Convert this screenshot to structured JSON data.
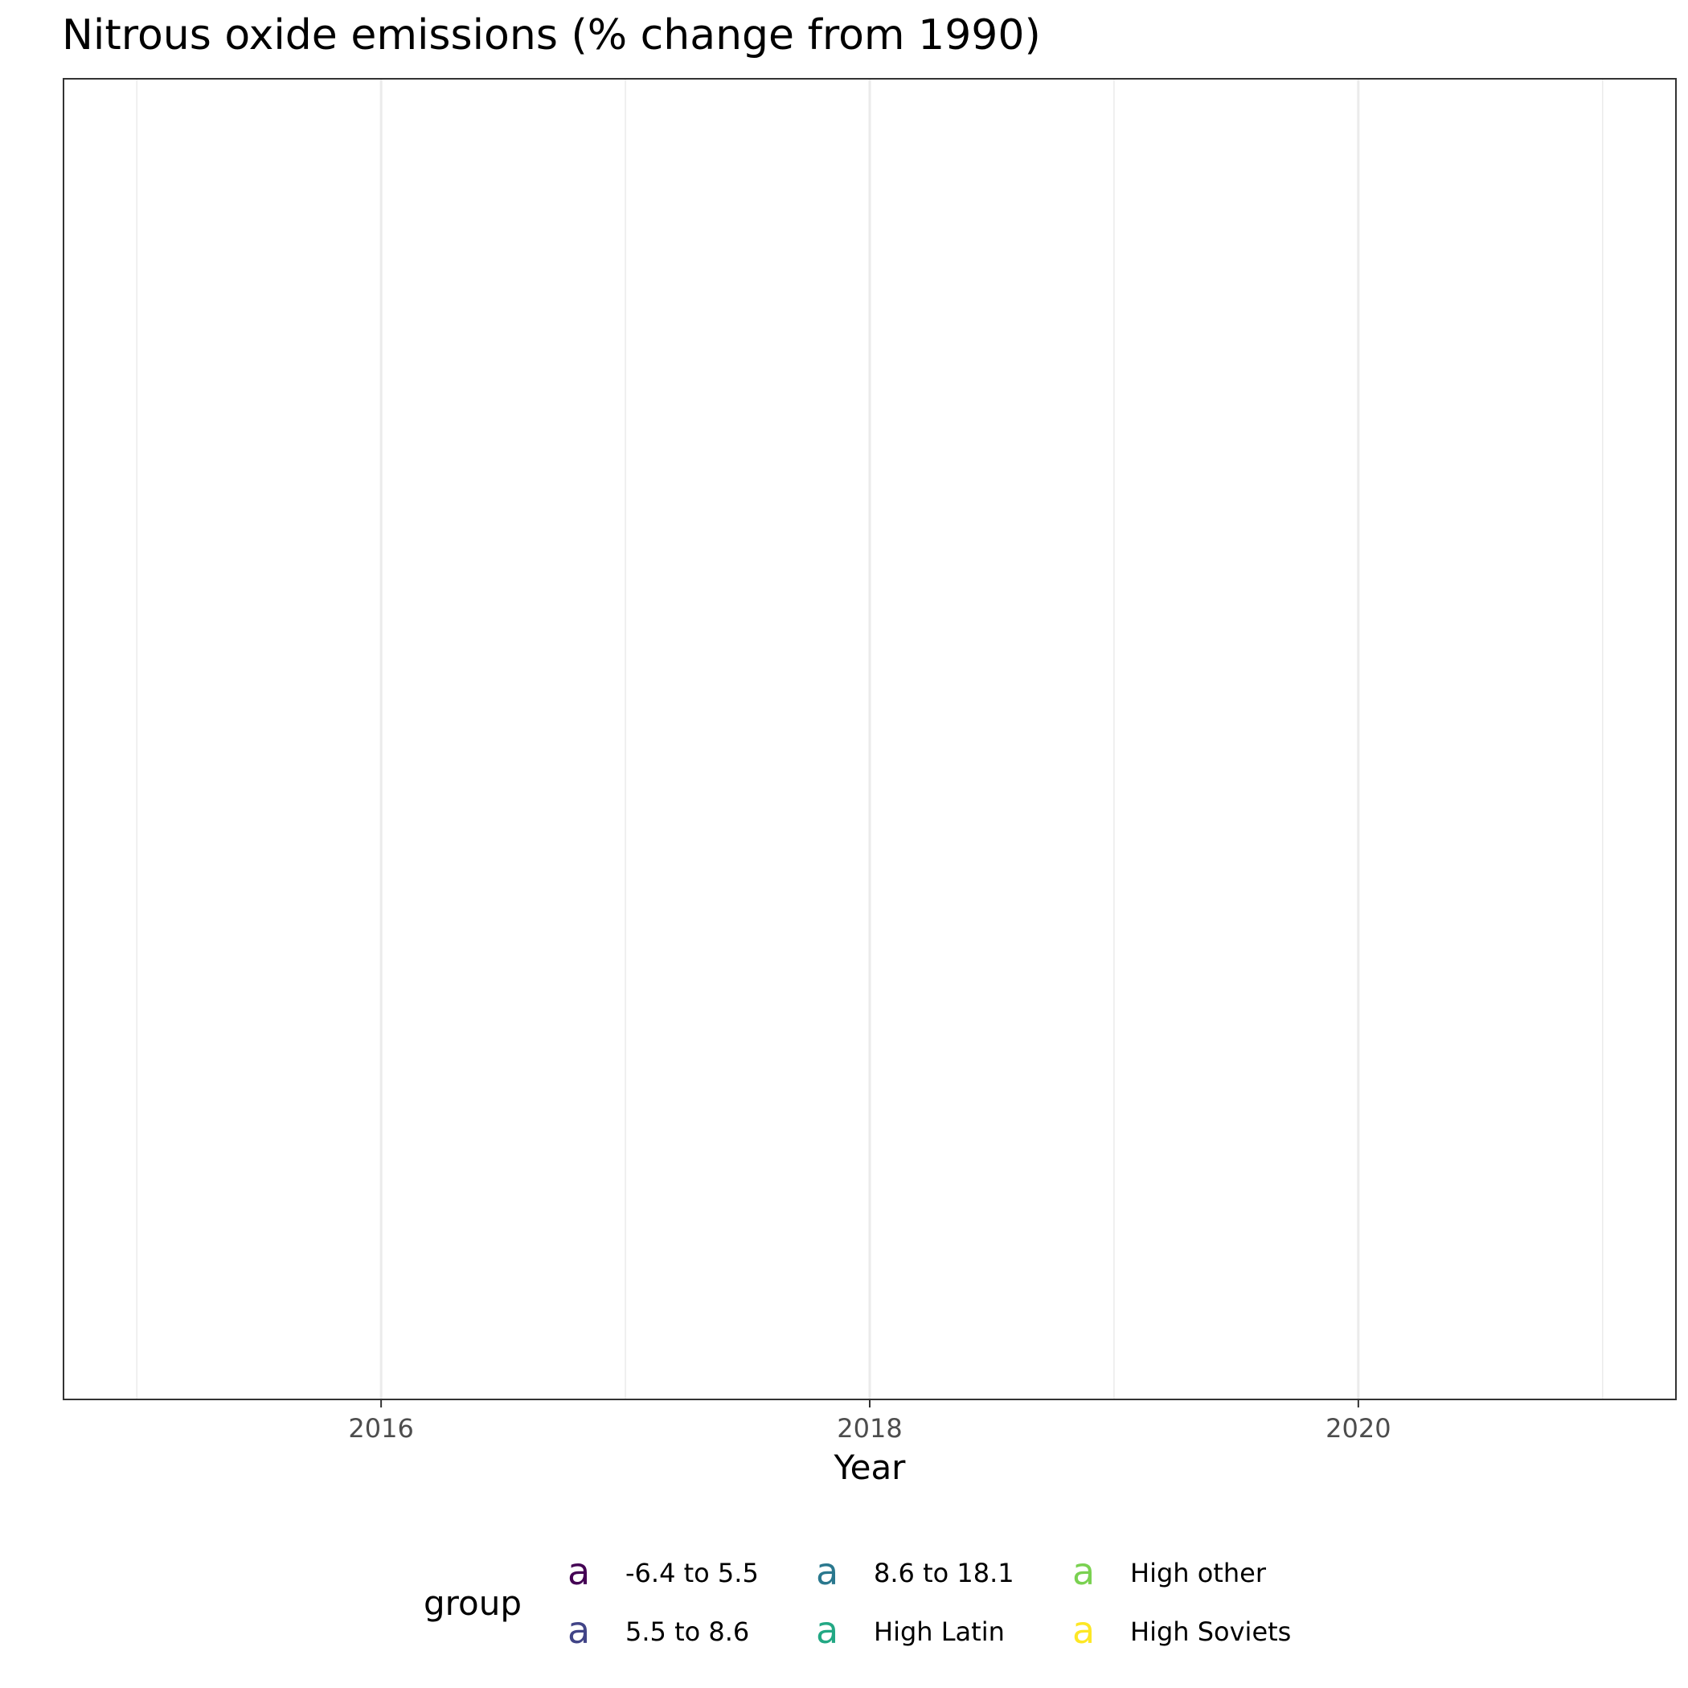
{
  "chart_data": {
    "type": "line",
    "title": "Nitrous oxide emissions (% change from 1990)",
    "xlabel": "Year",
    "ylabel": "",
    "xlim": [
      2014.7,
      2021.3
    ],
    "x_ticks": [
      2016,
      2018,
      2020
    ],
    "x_minor_ticks": [
      2015,
      2017,
      2019,
      2021
    ],
    "x_tick_labels": [
      "2016",
      "2018",
      "2020"
    ],
    "grid": "vertical",
    "series": [],
    "legend": {
      "title": "group",
      "position": "bottom",
      "key_glyph": "a",
      "entries": [
        {
          "label": "-6.4 to 5.5",
          "color": "#440154"
        },
        {
          "label": "5.5 to 8.6",
          "color": "#414487"
        },
        {
          "label": "8.6 to 18.1",
          "color": "#2A788E"
        },
        {
          "label": "High Latin",
          "color": "#22A884"
        },
        {
          "label": "High other",
          "color": "#7AD151"
        },
        {
          "label": "High Soviets",
          "color": "#FDE725"
        }
      ]
    }
  }
}
